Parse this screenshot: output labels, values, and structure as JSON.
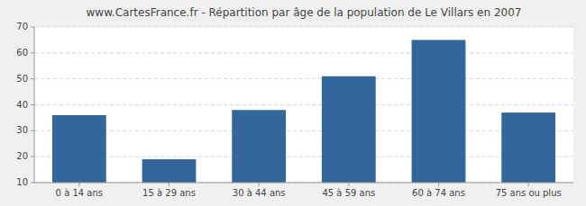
{
  "chart_data": {
    "type": "bar",
    "title": "www.CartesFrance.fr - Répartition par âge de la population de Le Villars en 2007",
    "categories": [
      "0 à 14 ans",
      "15 à 29 ans",
      "30 à 44 ans",
      "45 à 59 ans",
      "60 à 74 ans",
      "75 ans ou plus"
    ],
    "values": [
      36,
      19,
      38,
      51,
      65,
      37
    ],
    "color": "#336699",
    "ylim": [
      10,
      70
    ],
    "yticks": [
      10,
      20,
      30,
      40,
      50,
      60,
      70
    ],
    "grid": true
  }
}
